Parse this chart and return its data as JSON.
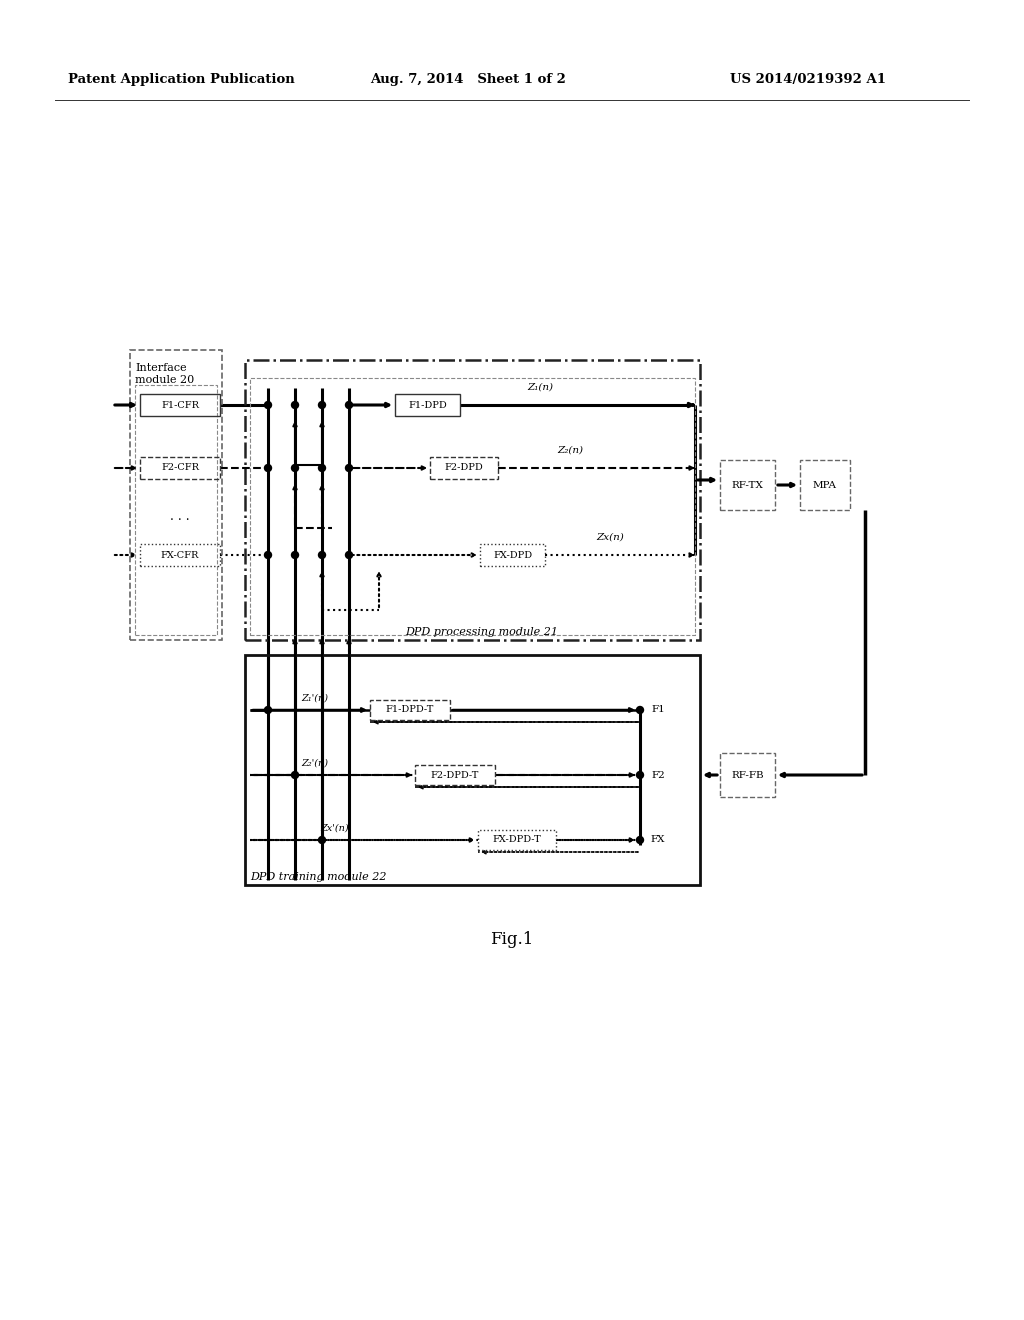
{
  "header_left": "Patent Application Publication",
  "header_mid": "Aug. 7, 2014   Sheet 1 of 2",
  "header_right": "US 2014/0219392 A1",
  "fig_label": "Fig.1",
  "bg_color": "#ffffff",
  "interface_module_label": "Interface\nmodule 20",
  "dpd_processing_label": "DPD processing module 21",
  "dpd_training_label": "DPD training module 22",
  "F1_CFR": "F1-CFR",
  "F2_CFR": "F2-CFR",
  "FX_CFR": "FX-CFR",
  "F1_DPD": "F1-DPD",
  "F2_DPD": "F2-DPD",
  "FX_DPD": "FX-DPD",
  "F1_DPD_T": "F1-DPD-T",
  "F2_DPD_T": "F2-DPD-T",
  "FX_DPD_T": "FX-DPD-T",
  "RF_TX": "RF-TX",
  "MPA": "MPA",
  "RF_FB": "RF-FB",
  "Z1n": "Z₁(n)",
  "Z2n": "Z₂(n)",
  "ZXn": "Zx(n)",
  "Z1pn": "Z₁'(n)",
  "Z2pn": "Z₂'(n)",
  "ZXpn": "Zx'(n)",
  "lbl_F1": "F1",
  "lbl_F2": "F2",
  "lbl_FX": "FX",
  "dots": "· · ·"
}
